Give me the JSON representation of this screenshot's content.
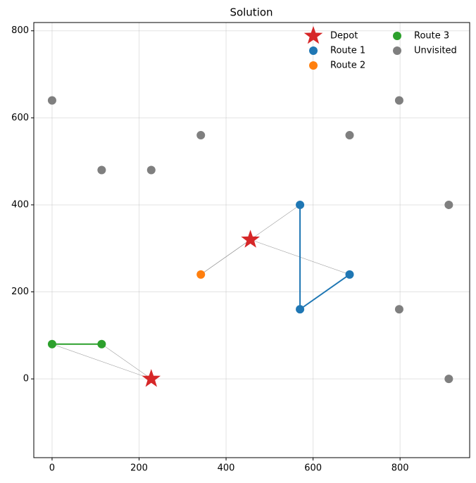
{
  "chart_data": {
    "type": "scatter",
    "title": "Solution",
    "xlim": [
      -42,
      960
    ],
    "ylim": [
      -181,
      819
    ],
    "xticks": [
      0,
      200,
      400,
      600,
      800
    ],
    "yticks": [
      0,
      200,
      400,
      600,
      800
    ],
    "grid": true,
    "legend": "upper right",
    "series": [
      {
        "name": "Depot",
        "color": "#d62728",
        "marker": "star",
        "x": [
          228,
          456
        ],
        "values": [
          0,
          320
        ]
      },
      {
        "name": "Route 1",
        "color": "#1f77b4",
        "marker": "circle",
        "route": true,
        "x": [
          570,
          570,
          684
        ],
        "values": [
          400,
          160,
          240
        ]
      },
      {
        "name": "Route 2",
        "color": "#ff7f0e",
        "marker": "circle",
        "route": true,
        "x": [
          342
        ],
        "values": [
          240
        ]
      },
      {
        "name": "Route 3",
        "color": "#2ca02c",
        "marker": "circle",
        "route": true,
        "x": [
          114,
          0
        ],
        "values": [
          80,
          80
        ]
      },
      {
        "name": "Unvisited",
        "color": "#7f7f7f",
        "marker": "circle",
        "x": [
          0,
          114,
          228,
          342,
          684,
          798,
          912,
          798,
          912
        ],
        "values": [
          640,
          480,
          480,
          560,
          560,
          640,
          400,
          160,
          0
        ]
      }
    ]
  }
}
